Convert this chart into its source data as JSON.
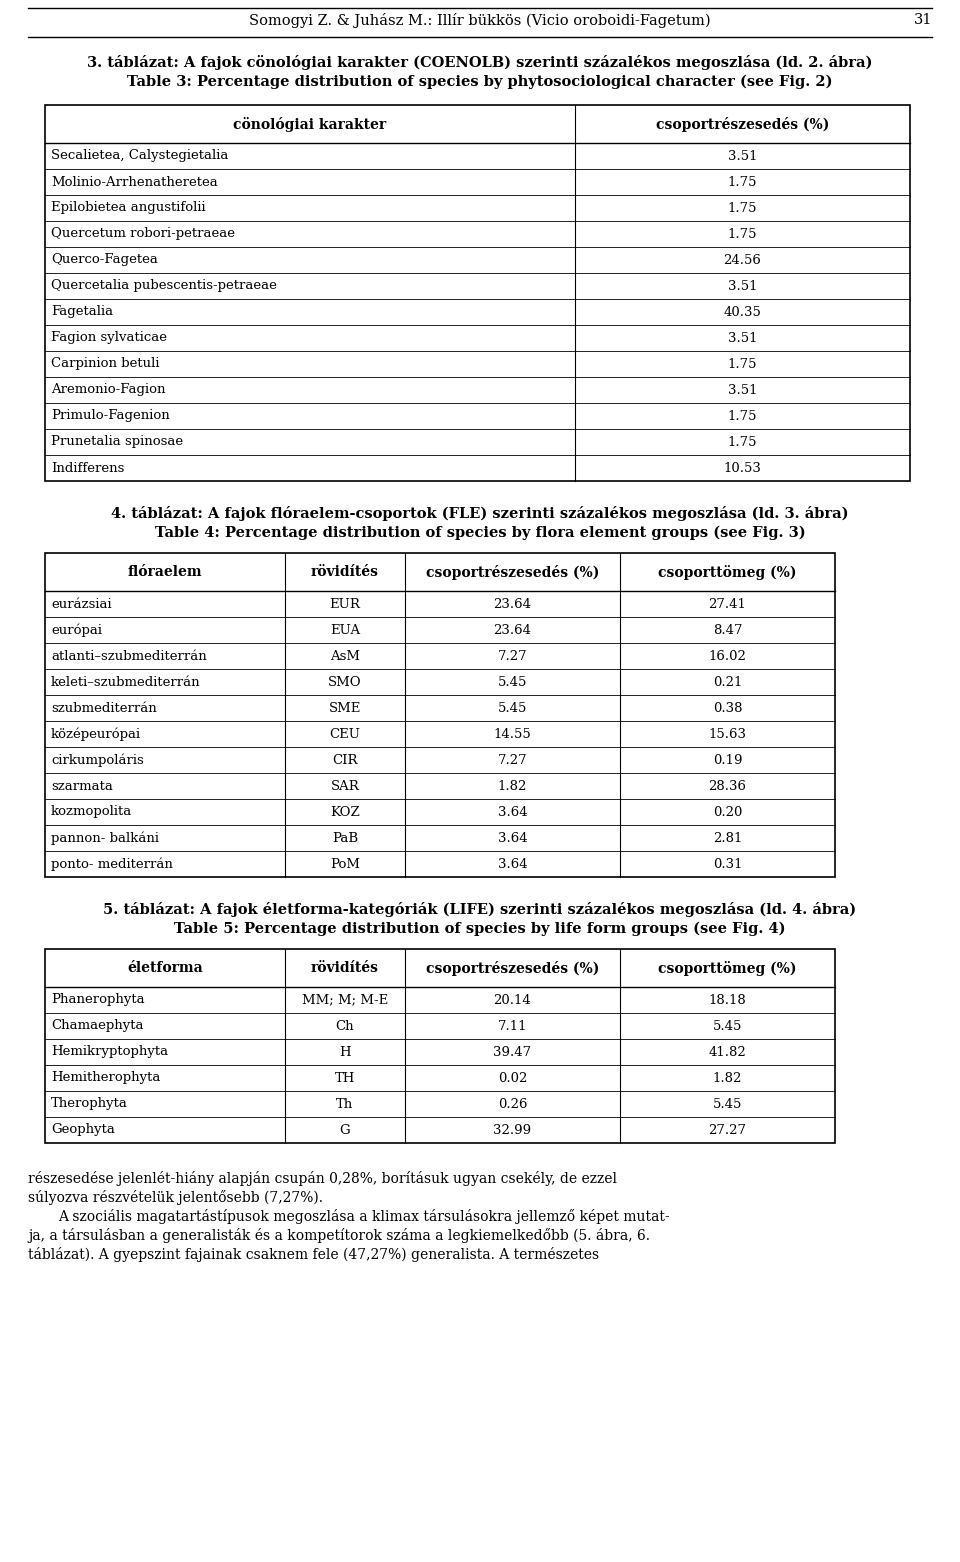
{
  "page_header_left": "Somogyi Z. & Juhász M.: Illír bükkös (Vicio oroboidi-Fagetum)",
  "page_number": "31",
  "section3_title_hu": "3. táblázat: A fajok cönológiai karakter (COENOLB) szerinti százalékos megoszlása (ld. 2. ábra)",
  "section3_title_en": "Table 3: Percentage distribution of species by phytosociological character (see Fig. 2)",
  "table3_headers": [
    "cönológiai karakter",
    "csoportrészesedés (%)"
  ],
  "table3_data": [
    [
      "Secalietea, Calystegietalia",
      "3.51"
    ],
    [
      "Molinio-Arrhenatheretea",
      "1.75"
    ],
    [
      "Epilobietea angustifolii",
      "1.75"
    ],
    [
      "Quercetum robori-petraeae",
      "1.75"
    ],
    [
      "Querco-Fagetea",
      "24.56"
    ],
    [
      "Quercetalia pubescentis-petraeae",
      "3.51"
    ],
    [
      "Fagetalia",
      "40.35"
    ],
    [
      "Fagion sylvaticae",
      "3.51"
    ],
    [
      "Carpinion betuli",
      "1.75"
    ],
    [
      "Aremonio-Fagion",
      "3.51"
    ],
    [
      "Primulo-Fagenion",
      "1.75"
    ],
    [
      "Prunetalia spinosae",
      "1.75"
    ],
    [
      "Indifferens",
      "10.53"
    ]
  ],
  "section4_title_hu": "4. táblázat: A fajok flóraelem-csoportok (FLE) szerinti százalékos megoszlása (ld. 3. ábra)",
  "section4_title_en": "Table 4: Percentage distribution of species by flora element groups (see Fig. 3)",
  "table4_headers": [
    "flóraelem",
    "rövidítés",
    "csoportrészesedés (%)",
    "csoporttömeg (%)"
  ],
  "table4_data": [
    [
      "eurázsiai",
      "EUR",
      "23.64",
      "27.41"
    ],
    [
      "európai",
      "EUA",
      "23.64",
      "8.47"
    ],
    [
      "atlanti–szubmediterrán",
      "AsM",
      "7.27",
      "16.02"
    ],
    [
      "keleti–szubmediterrán",
      "SMO",
      "5.45",
      "0.21"
    ],
    [
      "szubmediterrán",
      "SME",
      "5.45",
      "0.38"
    ],
    [
      "középeurópai",
      "CEU",
      "14.55",
      "15.63"
    ],
    [
      "cirkumpoláris",
      "CIR",
      "7.27",
      "0.19"
    ],
    [
      "szarmata",
      "SAR",
      "1.82",
      "28.36"
    ],
    [
      "kozmopolita",
      "KOZ",
      "3.64",
      "0.20"
    ],
    [
      "pannon- balkáni",
      "PaB",
      "3.64",
      "2.81"
    ],
    [
      "ponto- mediterrán",
      "PoM",
      "3.64",
      "0.31"
    ]
  ],
  "section5_title_hu": "5. táblázat: A fajok életforma-kategóriák (LIFE) szerinti százalékos megoszlása (ld. 4. ábra)",
  "section5_title_en": "Table 5: Percentage distribution of species by life form groups (see Fig. 4)",
  "table5_headers": [
    "életforma",
    "rövidítés",
    "csoportrészesedés (%)",
    "csoporttömeg (%)"
  ],
  "table5_data": [
    [
      "Phanerophyta",
      "MM; M; M-E",
      "20.14",
      "18.18"
    ],
    [
      "Chamaephyta",
      "Ch",
      "7.11",
      "5.45"
    ],
    [
      "Hemikryptophyta",
      "H",
      "39.47",
      "41.82"
    ],
    [
      "Hemitherophyta",
      "TH",
      "0.02",
      "1.82"
    ],
    [
      "Therophyta",
      "Th",
      "0.26",
      "5.45"
    ],
    [
      "Geophyta",
      "G",
      "32.99",
      "27.27"
    ]
  ],
  "footer_lines": [
    "részesedése jelenlét-hiány alapján csupán 0,28%, borításuk ugyan csekély, de ezzel",
    "súlyozva részvételük jelentősebb (7,27%).",
    "    A szociális magatartástípusok megoszlása a klimax társulásokra jellemző képet mutat-",
    "ja, a társulásban a generalisták és a kompetítorok száma a legkiemelkedőbb (5. ábra, 6.",
    "táblázat). A gyepszint fajainak csaknem fele (47,27%) generalista. A természetes"
  ],
  "bg_color": "#ffffff",
  "text_color": "#000000",
  "header_bg": "#d0d0d0",
  "line_color": "#000000"
}
